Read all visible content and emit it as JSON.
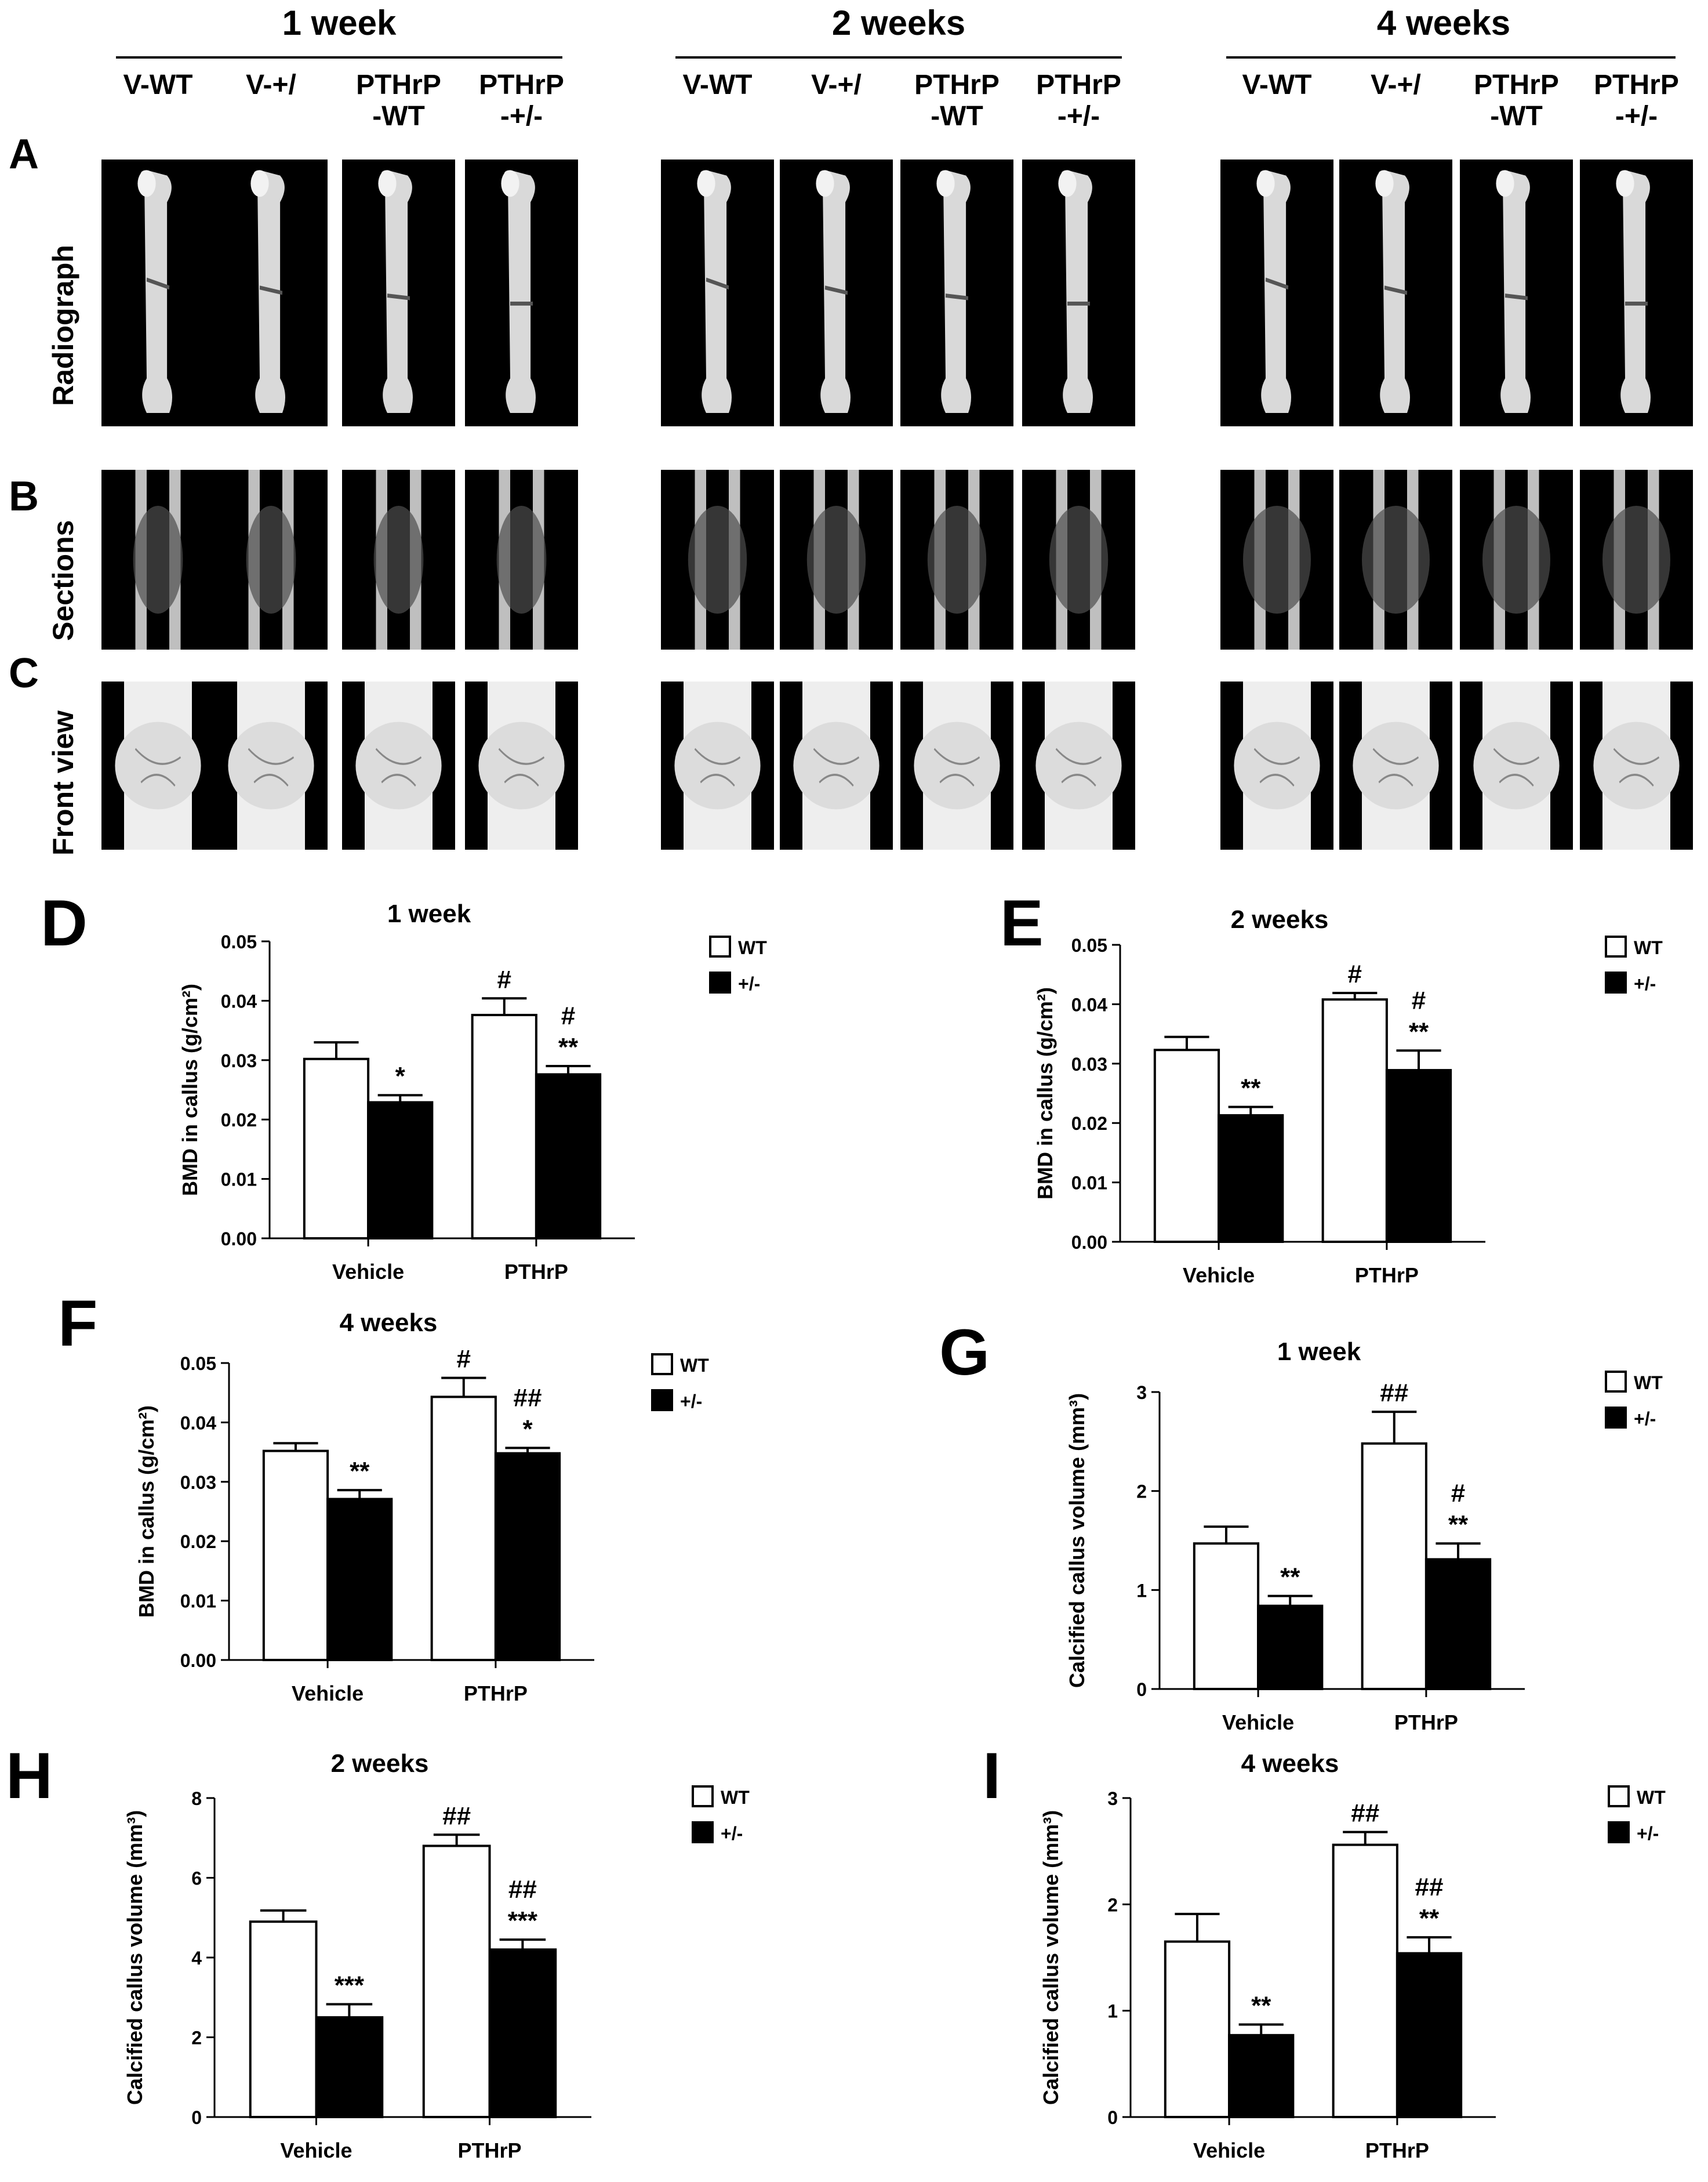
{
  "figure": {
    "weeks": [
      "1 week",
      "2 weeks",
      "4 weeks"
    ],
    "columns": [
      [
        "V-WT",
        "V-+/",
        "PTHrP\n-WT",
        "PTHrP\n-+/-"
      ],
      [
        "V-WT",
        "V-+/",
        "PTHrP\n-WT",
        "PTHrP\n-+/-"
      ],
      [
        "V-WT",
        "V-+/",
        "PTHrP\n-WT",
        "PTHrP\n-+/-"
      ]
    ],
    "rows": [
      {
        "letter": "A",
        "label": "Radiograph",
        "kind": "radiograph"
      },
      {
        "letter": "B",
        "label": "Sections",
        "kind": "section"
      },
      {
        "letter": "C",
        "label": "Front view",
        "kind": "surface"
      }
    ]
  },
  "legend": {
    "wt": "WT",
    "het": "+/-"
  },
  "colors": {
    "wt_fill": "#ffffff",
    "het_fill": "#000000",
    "stroke": "#000000"
  },
  "chart_data": [
    {
      "letter": "D",
      "type": "bar",
      "title": "1 week",
      "ylabel": "BMD in callus (g/cm²)",
      "categories": [
        "Vehicle",
        "PTHrP"
      ],
      "ylim": [
        0,
        0.05
      ],
      "yticks": [
        "0.00",
        "0.01",
        "0.02",
        "0.03",
        "0.04",
        "0.05"
      ],
      "series": [
        {
          "name": "WT",
          "values": [
            0.0302,
            0.0376
          ],
          "errors": [
            0.0028,
            0.0028
          ]
        },
        {
          "name": "+/-",
          "values": [
            0.0229,
            0.0276
          ],
          "errors": [
            0.0012,
            0.0014
          ]
        }
      ],
      "annotations": [
        [
          "",
          "#"
        ],
        [
          "*",
          "#\n**"
        ]
      ]
    },
    {
      "letter": "E",
      "type": "bar",
      "title": "2 weeks",
      "ylabel": "BMD in callus (g/cm²)",
      "categories": [
        "Vehicle",
        "PTHrP"
      ],
      "ylim": [
        0,
        0.05
      ],
      "yticks": [
        "0.00",
        "0.01",
        "0.02",
        "0.03",
        "0.04",
        "0.05"
      ],
      "series": [
        {
          "name": "WT",
          "values": [
            0.0323,
            0.0408
          ],
          "errors": [
            0.0022,
            0.0011
          ]
        },
        {
          "name": "+/-",
          "values": [
            0.0213,
            0.0289
          ],
          "errors": [
            0.0014,
            0.0033
          ]
        }
      ],
      "annotations": [
        [
          "",
          "#"
        ],
        [
          "**",
          "#\n**"
        ]
      ]
    },
    {
      "letter": "F",
      "type": "bar",
      "title": "4 weeks",
      "ylabel": "BMD in callus (g/cm²)",
      "categories": [
        "Vehicle",
        "PTHrP"
      ],
      "ylim": [
        0,
        0.05
      ],
      "yticks": [
        "0.00",
        "0.01",
        "0.02",
        "0.03",
        "0.04",
        "0.05"
      ],
      "series": [
        {
          "name": "WT",
          "values": [
            0.0352,
            0.0443
          ],
          "errors": [
            0.0013,
            0.0032
          ]
        },
        {
          "name": "+/-",
          "values": [
            0.0271,
            0.0348
          ],
          "errors": [
            0.0015,
            0.0009
          ]
        }
      ],
      "annotations": [
        [
          "",
          "#"
        ],
        [
          "**",
          "##\n*"
        ]
      ]
    },
    {
      "letter": "G",
      "type": "bar",
      "title": "1 week",
      "ylabel": "Calcified callus volume (mm³)",
      "categories": [
        "Vehicle",
        "PTHrP"
      ],
      "ylim": [
        0,
        3
      ],
      "yticks": [
        "0",
        "1",
        "2",
        "3"
      ],
      "series": [
        {
          "name": "WT",
          "values": [
            1.47,
            2.48
          ],
          "errors": [
            0.17,
            0.32
          ]
        },
        {
          "name": "+/-",
          "values": [
            0.84,
            1.31
          ],
          "errors": [
            0.1,
            0.16
          ]
        }
      ],
      "annotations": [
        [
          "",
          "##"
        ],
        [
          "**",
          "#\n**"
        ]
      ]
    },
    {
      "letter": "H",
      "type": "bar",
      "title": "2 weeks",
      "ylabel": "Calcified callus volume (mm³)",
      "categories": [
        "Vehicle",
        "PTHrP"
      ],
      "ylim": [
        0,
        8
      ],
      "yticks": [
        "0",
        "2",
        "4",
        "6",
        "8"
      ],
      "series": [
        {
          "name": "WT",
          "values": [
            4.9,
            6.8
          ],
          "errors": [
            0.28,
            0.28
          ]
        },
        {
          "name": "+/-",
          "values": [
            2.5,
            4.2
          ],
          "errors": [
            0.33,
            0.25
          ]
        }
      ],
      "annotations": [
        [
          "",
          "##"
        ],
        [
          "***",
          "##\n***"
        ]
      ]
    },
    {
      "letter": "I",
      "type": "bar",
      "title": "4 weeks",
      "ylabel": "Calcified callus volume (mm³)",
      "categories": [
        "Vehicle",
        "PTHrP"
      ],
      "ylim": [
        0,
        3
      ],
      "yticks": [
        "0",
        "1",
        "2",
        "3"
      ],
      "series": [
        {
          "name": "WT",
          "values": [
            1.65,
            2.56
          ],
          "errors": [
            0.26,
            0.12
          ]
        },
        {
          "name": "+/-",
          "values": [
            0.77,
            1.54
          ],
          "errors": [
            0.1,
            0.15
          ]
        }
      ],
      "annotations": [
        [
          "",
          "##"
        ],
        [
          "**",
          "##\n**"
        ]
      ]
    }
  ]
}
